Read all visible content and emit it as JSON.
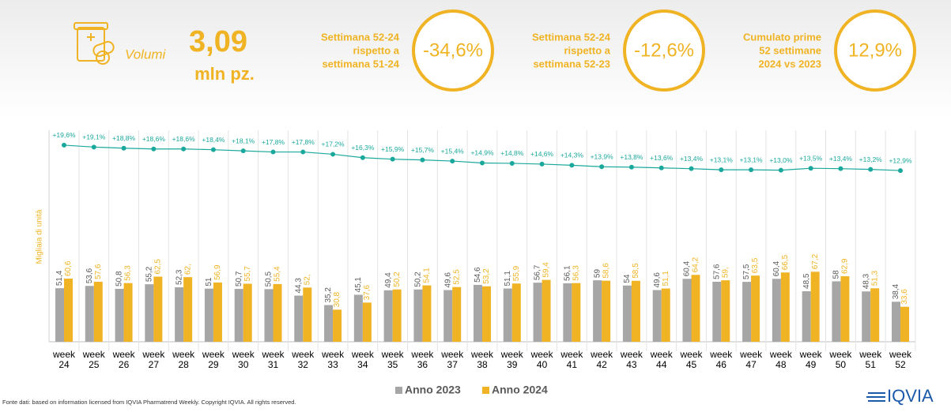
{
  "header": {
    "icon_label": "Volumi",
    "value": "3,09",
    "unit": "mln pz.",
    "kpis": [
      {
        "label": [
          "Settimana 52-24",
          "rispetto a",
          "settimana 51-24"
        ],
        "value": "-34,6%"
      },
      {
        "label": [
          "Settimana 52-24",
          "rispetto a",
          "settimana 52-23"
        ],
        "value": "-12,6%"
      },
      {
        "label": [
          "Cumulato prime",
          "52 settimane",
          "2024 vs 2023"
        ],
        "value": "12,9%"
      }
    ]
  },
  "chart_data": {
    "type": "bar",
    "y_label": "Migliaia di unità",
    "categories": [
      "week 24",
      "week 25",
      "week 26",
      "week 27",
      "week 28",
      "week 29",
      "week 30",
      "week 31",
      "week 32",
      "week 33",
      "week 34",
      "week 35",
      "week 36",
      "week 37",
      "week 38",
      "week 39",
      "week 40",
      "week 41",
      "week 42",
      "week 43",
      "week 44",
      "week 45",
      "week 46",
      "week 47",
      "week 48",
      "week 49",
      "week 50",
      "week 51",
      "week 52"
    ],
    "ylim": [
      0,
      100
    ],
    "y2lim": [
      0,
      20
    ],
    "series": [
      {
        "name": "Anno 2023",
        "color": "#a6a6a6",
        "values": [
          51.4,
          53.6,
          50.8,
          55.2,
          52.3,
          51,
          50.7,
          50.5,
          44.3,
          35.2,
          45.1,
          49.4,
          50.2,
          49.6,
          54.6,
          51.1,
          56.7,
          56.1,
          59,
          54,
          49.6,
          60.4,
          57.6,
          57.5,
          60.4,
          48.5,
          58,
          48.3,
          38.4
        ],
        "value_labels": [
          "51,4",
          "53,6",
          "50,8",
          "55,2",
          "52,3",
          "51",
          "50,7",
          "50,5",
          "44,3",
          "35,2",
          "45,1",
          "49,4",
          "50,2",
          "49,6",
          "54,6",
          "51,1",
          "56,7",
          "56,1",
          "59",
          "54",
          "49,6",
          "60,4",
          "57,6",
          "57,5",
          "60,4",
          "48,5",
          "58",
          "48,3",
          "38,4"
        ]
      },
      {
        "name": "Anno 2024",
        "color": "#f0b323",
        "values": [
          60.6,
          57.6,
          56.3,
          62.5,
          62,
          56.9,
          55.7,
          55.4,
          52,
          30.8,
          37.6,
          50.2,
          54.1,
          52.5,
          53.2,
          55.9,
          59.4,
          56.3,
          58.6,
          58.5,
          51.1,
          64.2,
          59,
          63.5,
          66.5,
          67.2,
          62.9,
          51.3,
          33.6
        ],
        "value_labels": [
          "60,6",
          "57,6",
          "56,3",
          "62,5",
          "62,",
          "56,9",
          "55,7",
          "55,4",
          "52,",
          "30,8",
          "37,6",
          "50,2",
          "54,1",
          "52,5",
          "53,2",
          "55,9",
          "59,4",
          "56,3",
          "58,6",
          "58,5",
          "51,1",
          "64,2",
          "59,",
          "63,5",
          "66,5",
          "67,2",
          "62,9",
          "51,3",
          "33,6"
        ]
      },
      {
        "type": "line",
        "axis": "y2",
        "color": "#1aa89c",
        "values": [
          19.6,
          19.1,
          18.8,
          18.6,
          18.6,
          18.4,
          18.1,
          17.8,
          17.8,
          17.2,
          16.3,
          15.9,
          15.7,
          15.4,
          14.9,
          14.8,
          14.6,
          14.3,
          13.9,
          13.8,
          13.6,
          13.4,
          13.1,
          13.1,
          13.0,
          13.5,
          13.4,
          13.2,
          12.9
        ],
        "value_labels": [
          "+19,6%",
          "+19,1%",
          "+18,8%",
          "+18,6%",
          "+18,6%",
          "+18,4%",
          "+18,1%",
          "+17,8%",
          "+17,8%",
          "+17,2%",
          "+16,3%",
          "+15,9%",
          "+15,7%",
          "+15,4%",
          "+14,9%",
          "+14,8%",
          "+14,6%",
          "+14,3%",
          "+13,9%",
          "+13,8%",
          "+13,6%",
          "+13,4%",
          "+13,1%",
          "+13,1%",
          "+13,0%",
          "+13,5%",
          "+13,4%",
          "+13,2%",
          "+12,9%"
        ]
      }
    ]
  },
  "footer": {
    "source": "Fonte dati: based on information licensed from IQVIA Pharmatrend Weekly. Copyright IQVIA. All rights reserved.",
    "logo": "IQVIA"
  }
}
